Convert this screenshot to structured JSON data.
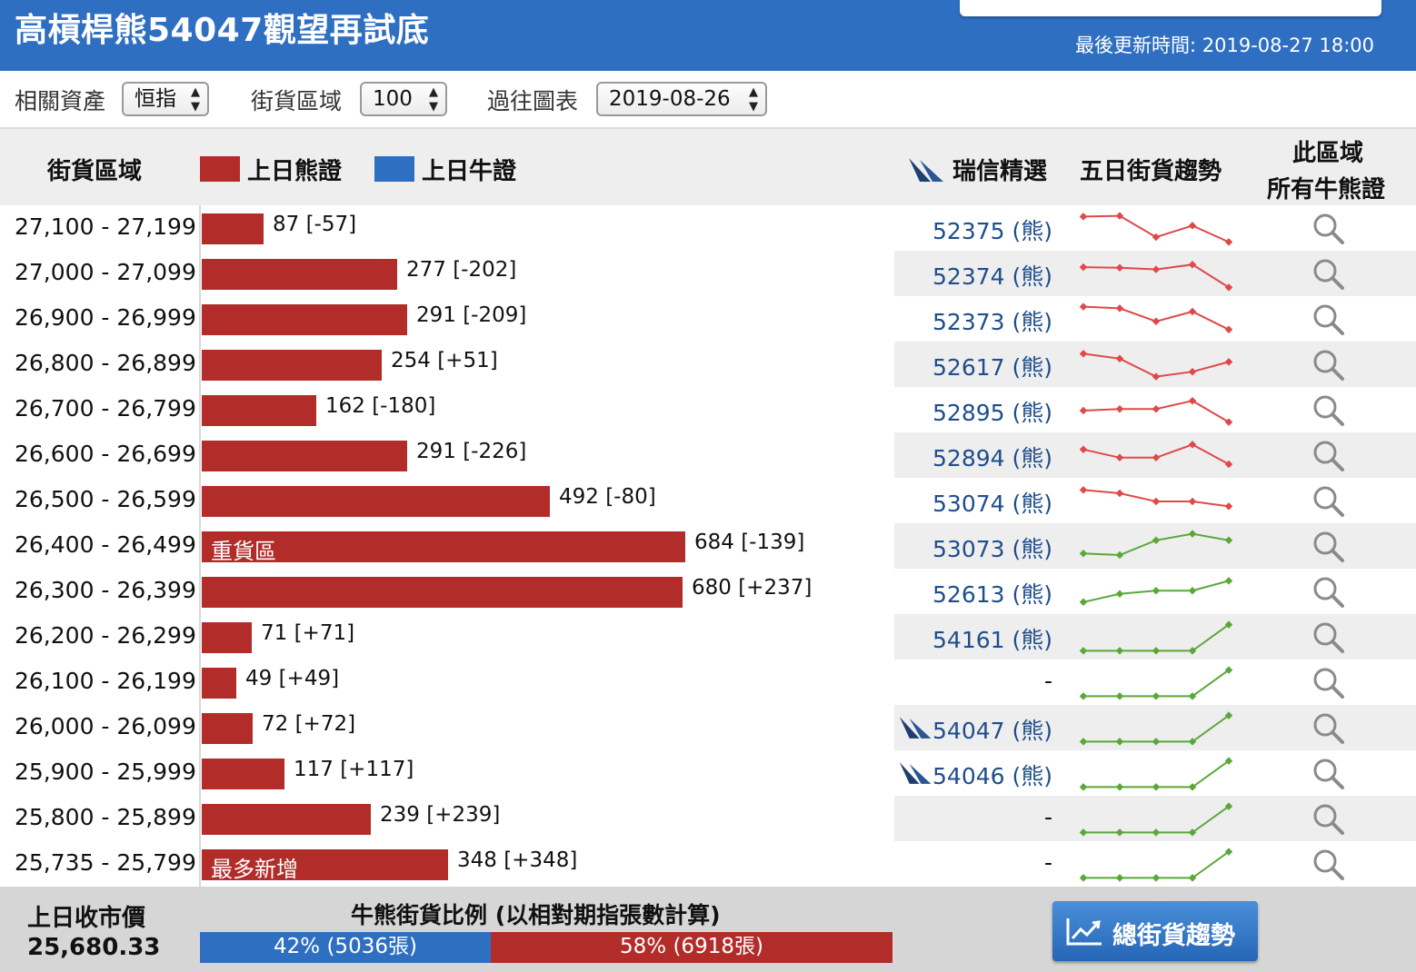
{
  "header": {
    "title": "高槓桿熊54047觀望再試底",
    "updated": "最後更新時間: 2019-08-27 18:00"
  },
  "filters": {
    "asset_label": "相關資產",
    "asset_value": "恒指",
    "zone_label": "街貨區域",
    "zone_value": "100",
    "history_label": "過往圖表",
    "history_value": "2019-08-26"
  },
  "table_header": {
    "zone": "街貨區域",
    "bear_legend": "上日熊證",
    "bull_legend": "上日牛證",
    "pick": "瑞信精選",
    "trend": "五日街貨趨勢",
    "all_line1": "此區域",
    "all_line2": "所有牛熊證"
  },
  "colors": {
    "bear": "#b22d2a",
    "bull": "#2f6fc2",
    "trend_down": "#e0484a",
    "trend_up": "#5aa83a"
  },
  "rows": [
    {
      "range": "27,100 - 27,199",
      "value": 87,
      "label": "87 [-57]",
      "tag": "",
      "pick": "52375 (熊)",
      "cs": false,
      "trend": "down",
      "spark": [
        0.88,
        0.9,
        0.25,
        0.6,
        0.1
      ]
    },
    {
      "range": "27,000 - 27,099",
      "value": 277,
      "label": "277 [-202]",
      "tag": "",
      "pick": "52374 (熊)",
      "cs": false,
      "trend": "down",
      "spark": [
        0.72,
        0.7,
        0.65,
        0.8,
        0.1
      ]
    },
    {
      "range": "26,900 - 26,999",
      "value": 291,
      "label": "291 [-209]",
      "tag": "",
      "pick": "52373 (熊)",
      "cs": false,
      "trend": "down",
      "spark": [
        0.9,
        0.85,
        0.45,
        0.75,
        0.2
      ]
    },
    {
      "range": "26,800 - 26,899",
      "value": 254,
      "label": "254 [+51]",
      "tag": "",
      "pick": "52617 (熊)",
      "cs": false,
      "trend": "down",
      "spark": [
        0.85,
        0.7,
        0.15,
        0.3,
        0.6
      ]
    },
    {
      "range": "26,700 - 26,799",
      "value": 162,
      "label": "162 [-180]",
      "tag": "",
      "pick": "52895 (熊)",
      "cs": false,
      "trend": "down",
      "spark": [
        0.5,
        0.55,
        0.55,
        0.8,
        0.15
      ]
    },
    {
      "range": "26,600 - 26,699",
      "value": 291,
      "label": "291 [-226]",
      "tag": "",
      "pick": "52894 (熊)",
      "cs": false,
      "trend": "down",
      "spark": [
        0.7,
        0.45,
        0.45,
        0.85,
        0.25
      ]
    },
    {
      "range": "26,500 - 26,599",
      "value": 492,
      "label": "492 [-80]",
      "tag": "",
      "pick": "53074 (熊)",
      "cs": false,
      "trend": "down",
      "spark": [
        0.85,
        0.75,
        0.5,
        0.5,
        0.35
      ]
    },
    {
      "range": "26,400 - 26,499",
      "value": 684,
      "label": "684 [-139]",
      "tag": "重貨區",
      "pick": "53073 (熊)",
      "cs": false,
      "trend": "up",
      "spark": [
        0.3,
        0.25,
        0.7,
        0.9,
        0.7
      ]
    },
    {
      "range": "26,300 - 26,399",
      "value": 680,
      "label": "680 [+237]",
      "tag": "",
      "pick": "52613 (熊)",
      "cs": false,
      "trend": "up",
      "spark": [
        0.2,
        0.45,
        0.55,
        0.55,
        0.85
      ]
    },
    {
      "range": "26,200 - 26,299",
      "value": 71,
      "label": "71 [+71]",
      "tag": "",
      "pick": "54161 (熊)",
      "cs": false,
      "trend": "up",
      "spark": [
        0.1,
        0.1,
        0.1,
        0.1,
        0.9
      ]
    },
    {
      "range": "26,100 - 26,199",
      "value": 49,
      "label": "49 [+49]",
      "tag": "",
      "pick": "-",
      "cs": false,
      "trend": "up",
      "spark": [
        0.1,
        0.1,
        0.1,
        0.1,
        0.9
      ]
    },
    {
      "range": "26,000 - 26,099",
      "value": 72,
      "label": "72 [+72]",
      "tag": "",
      "pick": "54047 (熊)",
      "cs": true,
      "trend": "up",
      "spark": [
        0.1,
        0.1,
        0.1,
        0.1,
        0.9
      ]
    },
    {
      "range": "25,900 - 25,999",
      "value": 117,
      "label": "117 [+117]",
      "tag": "",
      "pick": "54046 (熊)",
      "cs": true,
      "trend": "up",
      "spark": [
        0.1,
        0.1,
        0.1,
        0.1,
        0.9
      ]
    },
    {
      "range": "25,800 - 25,899",
      "value": 239,
      "label": "239 [+239]",
      "tag": "",
      "pick": "-",
      "cs": false,
      "trend": "up",
      "spark": [
        0.1,
        0.1,
        0.1,
        0.1,
        0.9
      ]
    },
    {
      "range": "25,735 - 25,799",
      "value": 348,
      "label": "348 [+348]",
      "tag": "最多新增",
      "pick": "-",
      "cs": false,
      "trend": "up",
      "spark": [
        0.1,
        0.1,
        0.1,
        0.1,
        0.9
      ]
    }
  ],
  "footer": {
    "close_label": "上日收市價",
    "close_value": "25,680.33",
    "ratio_title": "牛熊街貨比例 (以相對期指張數計算)",
    "bull_share": 0.42,
    "bull_text": "42% (5036張)",
    "bear_text": "58% (6918張)",
    "trend_button": "總街貨趨勢"
  }
}
